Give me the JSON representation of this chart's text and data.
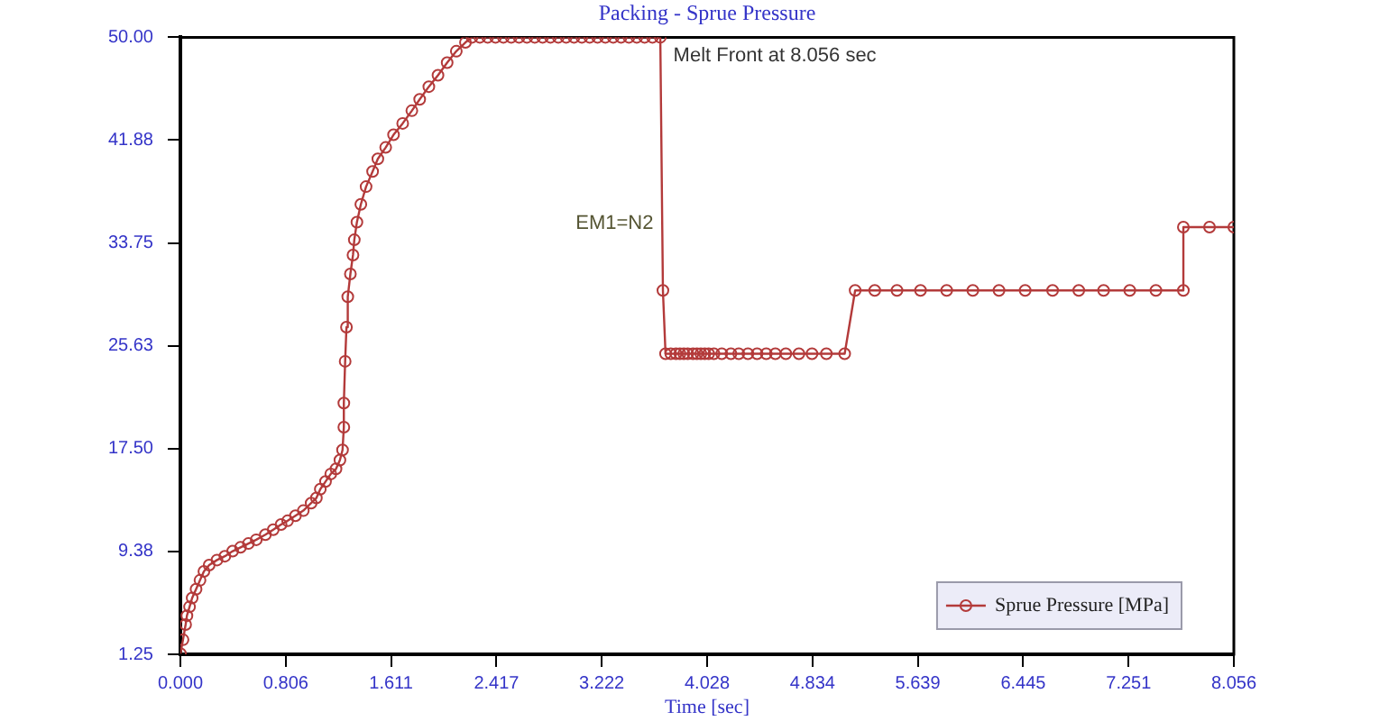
{
  "chart_data": {
    "type": "line",
    "title": "Packing - Sprue Pressure",
    "xlabel": "Time [sec]",
    "x": [
      0,
      0.02,
      0.04,
      0.05,
      0.07,
      0.09,
      0.12,
      0.15,
      0.18,
      0.22,
      0.28,
      0.34,
      0.4,
      0.46,
      0.52,
      0.58,
      0.65,
      0.71,
      0.77,
      0.82,
      0.88,
      0.94,
      1.0,
      1.04,
      1.07,
      1.11,
      1.15,
      1.19,
      1.22,
      1.24,
      1.25,
      1.25,
      1.26,
      1.27,
      1.28,
      1.3,
      1.32,
      1.33,
      1.35,
      1.38,
      1.42,
      1.47,
      1.51,
      1.57,
      1.63,
      1.7,
      1.77,
      1.83,
      1.9,
      1.97,
      2.04,
      2.11,
      2.18,
      2.23,
      2.29,
      2.35,
      2.41,
      2.47,
      2.53,
      2.59,
      2.65,
      2.71,
      2.77,
      2.83,
      2.89,
      2.95,
      3.01,
      3.07,
      3.13,
      3.19,
      3.25,
      3.31,
      3.37,
      3.43,
      3.49,
      3.55,
      3.61,
      3.67,
      3.69,
      3.71,
      3.75,
      3.79,
      3.82,
      3.85,
      3.88,
      3.92,
      3.95,
      3.98,
      4.01,
      4.04,
      4.08,
      4.14,
      4.21,
      4.27,
      4.34,
      4.41,
      4.48,
      4.55,
      4.63,
      4.73,
      4.83,
      4.94,
      5.08,
      5.16,
      5.31,
      5.48,
      5.66,
      5.86,
      6.06,
      6.26,
      6.46,
      6.67,
      6.87,
      7.06,
      7.26,
      7.46,
      7.67,
      7.67,
      7.87,
      8.056
    ],
    "series": [
      {
        "name": "Sprue Pressure [MPa]",
        "color": "#b33a3a",
        "values": [
          1.3,
          2.4,
          3.6,
          4.3,
          5.0,
          5.7,
          6.4,
          7.1,
          7.8,
          8.3,
          8.7,
          9.0,
          9.4,
          9.7,
          10.0,
          10.3,
          10.7,
          11.1,
          11.5,
          11.8,
          12.2,
          12.6,
          13.2,
          13.6,
          14.3,
          14.9,
          15.5,
          15.9,
          16.6,
          17.4,
          19.2,
          21.1,
          24.4,
          27.1,
          29.5,
          31.3,
          32.8,
          34.0,
          35.4,
          36.8,
          38.2,
          39.4,
          40.4,
          41.3,
          42.3,
          43.2,
          44.2,
          45.1,
          46.1,
          47.0,
          48.0,
          48.9,
          49.6,
          50,
          50,
          50,
          50,
          50,
          50,
          50,
          50,
          50,
          50,
          50,
          50,
          50,
          50,
          50,
          50,
          50,
          50,
          50,
          50,
          50,
          50,
          50,
          50,
          50,
          30,
          25,
          25,
          25,
          25,
          25,
          25,
          25,
          25,
          25,
          25,
          25,
          25,
          25,
          25,
          25,
          25,
          25,
          25,
          25,
          25,
          25,
          25,
          25,
          25,
          30,
          30,
          30,
          30,
          30,
          30,
          30,
          30,
          30,
          30,
          30,
          30,
          30,
          30,
          35,
          35,
          35
        ]
      }
    ],
    "xlim": [
      0,
      8.056
    ],
    "xticks": [
      {
        "value": 0,
        "label": "0.000"
      },
      0.806,
      1.611,
      2.417,
      3.222,
      4.028,
      4.834,
      5.639,
      6.445,
      7.251,
      8.056
    ],
    "ylim": [
      1.25,
      50
    ],
    "yticks": [
      1.25,
      9.38,
      {
        "value": 17.5,
        "label": "17.50"
      },
      25.63,
      33.75,
      41.88,
      {
        "value": 50,
        "label": "50.00"
      }
    ],
    "marker": "circle",
    "line_style": "solid",
    "legend": "bottom right",
    "annotations": [
      "Melt Front at 8.056 sec",
      "EM1=N2"
    ]
  }
}
